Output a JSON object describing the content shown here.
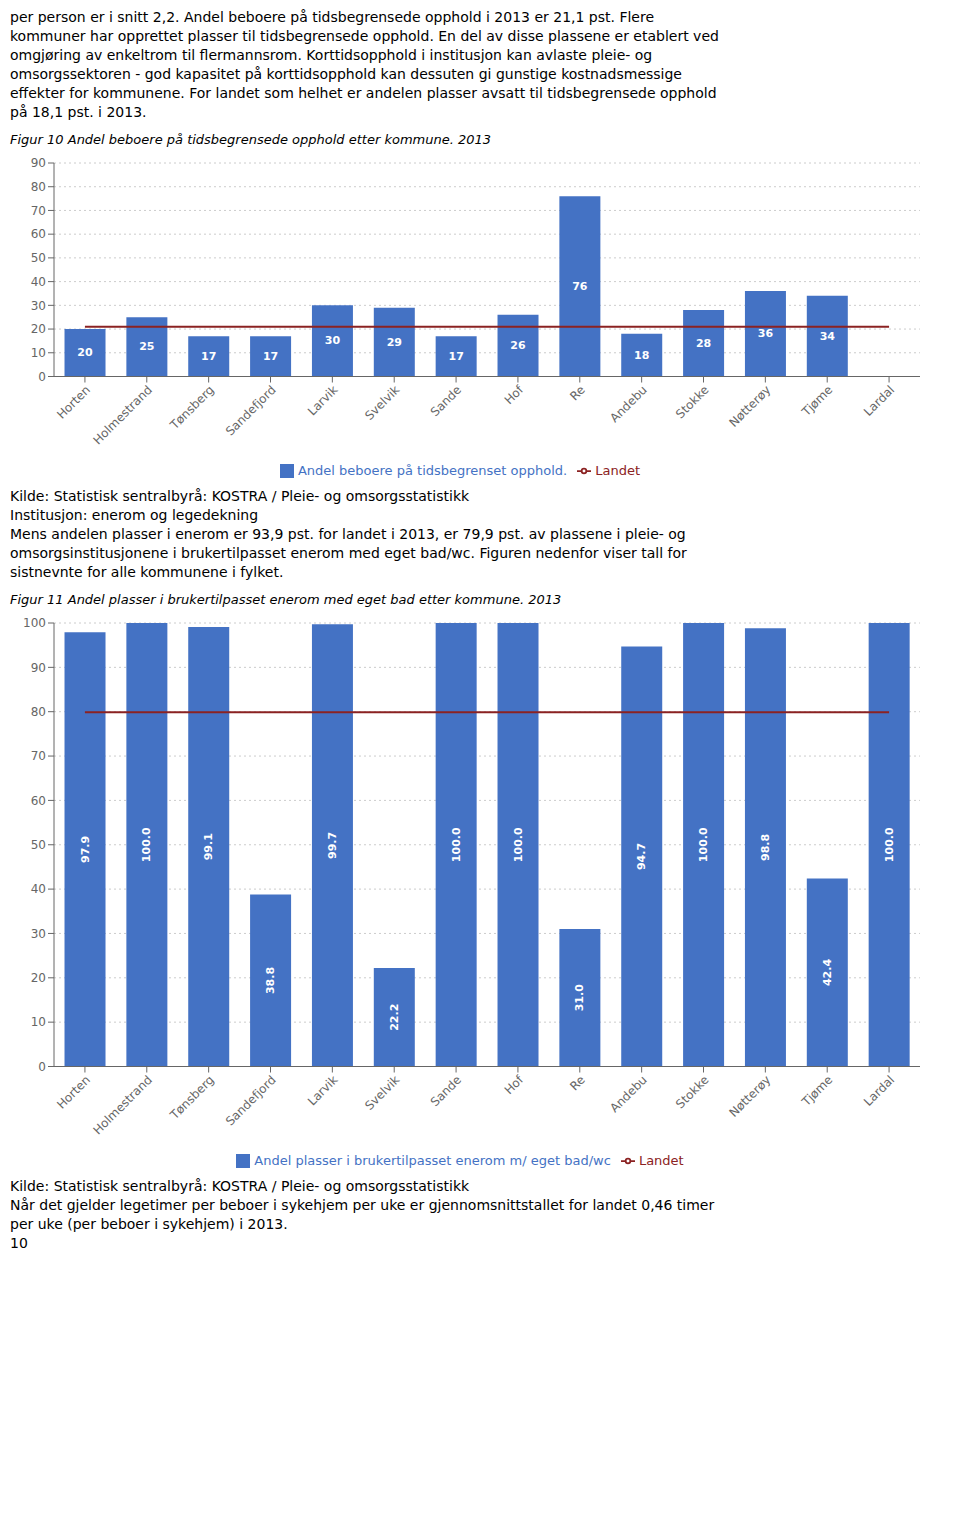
{
  "chart_data": [
    {
      "type": "bar",
      "subtitle": [
        "per person er i snitt 2,2. Andel beboere på tidsbegrensede opphold i 2013 er 21,1 pst. Flere",
        "kommuner har opprettet plasser til tidsbegrensede opphold. En del av disse plassene er etablert ved",
        "omgjøring av enkeltrom til flermannsrom. Korttidsopphold i institusjon kan avlaste pleie- og",
        "omsorgssektoren - god kapasitet på korttidsopphold kan dessuten gi gunstige kostnadsmessige",
        "effekter for kommunene. For landet som helhet er andelen plasser avsatt til tidsbegrensede opphold",
        "på 18,1 pst. i 2013."
      ],
      "title": "Figur 10 Andel beboere på tidsbegrensede opphold etter kommune. 2013",
      "categories": [
        "Horten",
        "Holmestrand",
        "Tønsberg",
        "Sandefjord",
        "Larvik",
        "Svelvik",
        "Sande",
        "Hof",
        "Re",
        "Andebu",
        "Stokke",
        "Nøtterøy",
        "Tjøme",
        "Lardal"
      ],
      "series": [
        {
          "name": "Andel beboere på tidsbegrenset opphold.",
          "type": "bar",
          "color": "#4472C4",
          "values": [
            20,
            25,
            17,
            17,
            30,
            29,
            17,
            26,
            76,
            18,
            28,
            36,
            34,
            0
          ],
          "value_labels": [
            "20",
            "25",
            "17",
            "17",
            "30",
            "29",
            "17",
            "26",
            "76",
            "18",
            "28",
            "36",
            "34",
            null
          ]
        },
        {
          "name": "Landet",
          "type": "line",
          "color": "#8B2222",
          "values": [
            21,
            21,
            21,
            21,
            21,
            21,
            21,
            21,
            21,
            21,
            21,
            21,
            21,
            21
          ]
        }
      ],
      "ylim": [
        0,
        90
      ],
      "yticks": [
        0,
        10,
        20,
        30,
        40,
        50,
        60,
        70,
        80,
        90
      ],
      "grid": true,
      "data_labels": true,
      "annotations": [
        "Kilde: Statistisk sentralbyrå: KOSTRA / Pleie- og omsorgsstatistikk",
        "Institusjon: enerom og legedekning",
        "Mens andelen plasser i enerom er 93,9 pst. for landet i 2013, er 79,9 pst. av plassene i pleie- og",
        "omsorgsinstitusjonene i brukertilpasset enerom med eget bad/wc. Figuren nedenfor viser tall for",
        "sistnevnte for alle kommunene i fylket."
      ]
    },
    {
      "type": "bar",
      "title": "Figur 11 Andel plasser i brukertilpasset enerom med eget bad etter kommune. 2013",
      "categories": [
        "Horten",
        "Holmestrand",
        "Tønsberg",
        "Sandefjord",
        "Larvik",
        "Svelvik",
        "Sande",
        "Hof",
        "Re",
        "Andebu",
        "Stokke",
        "Nøtterøy",
        "Tjøme",
        "Lardal"
      ],
      "series": [
        {
          "name": "Andel plasser i brukertilpasset enerom m/ eget bad/wc",
          "type": "bar",
          "color": "#4472C4",
          "values": [
            97.9,
            100.0,
            99.1,
            38.8,
            99.7,
            22.2,
            100.0,
            100.0,
            31.0,
            94.7,
            100.0,
            98.8,
            42.4,
            100.0
          ],
          "value_labels": [
            "97.9",
            "100.0",
            "99.1",
            "38.8",
            "99.7",
            "22.2",
            "100.0",
            "100.0",
            "31.0",
            "94.7",
            "100.0",
            "98.8",
            "42.4",
            "100.0"
          ]
        },
        {
          "name": "Landet",
          "type": "line",
          "color": "#8B2222",
          "values": [
            79.9,
            79.9,
            79.9,
            79.9,
            79.9,
            79.9,
            79.9,
            79.9,
            79.9,
            79.9,
            79.9,
            79.9,
            79.9,
            79.9
          ]
        }
      ],
      "ylim": [
        0,
        100
      ],
      "yticks": [
        0,
        10,
        20,
        30,
        40,
        50,
        60,
        70,
        80,
        90,
        100
      ],
      "grid": true,
      "data_labels": true,
      "annotations": [
        "Kilde: Statistisk sentralbyrå: KOSTRA / Pleie- og omsorgsstatistikk",
        "Når det gjelder legetimer per beboer i sykehjem per uke er gjennomsnittstallet for landet 0,46 timer",
        "per uke (per beboer i sykehjem) i 2013.",
        "10"
      ]
    }
  ]
}
